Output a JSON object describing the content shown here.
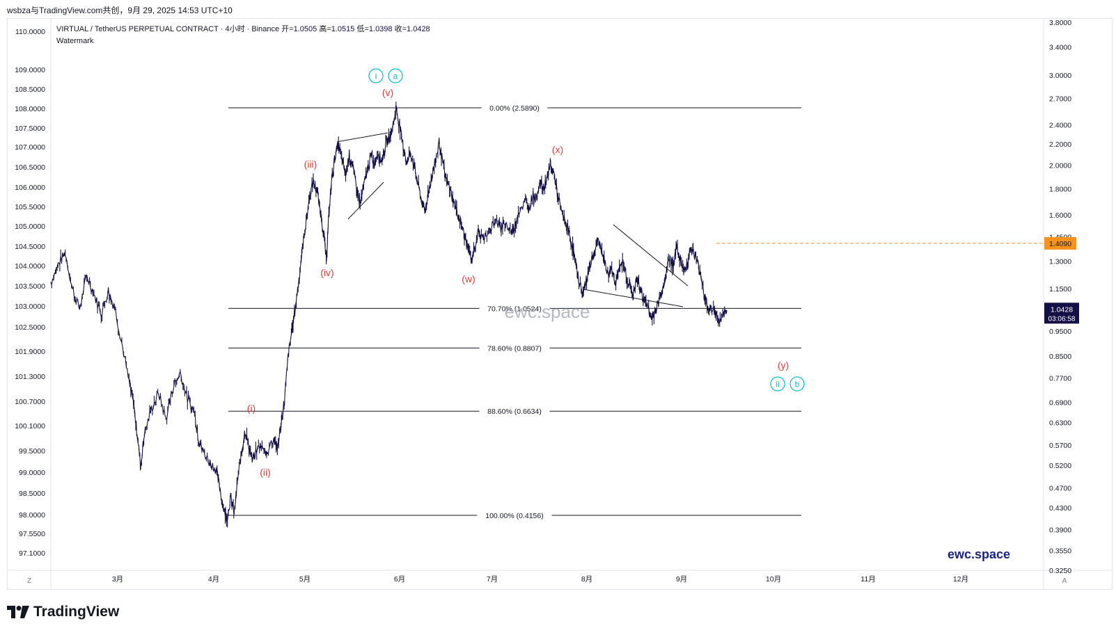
{
  "header": {
    "title": "wsbza与TradingView.com共创，9月 29, 2025 14:53 UTC+10"
  },
  "footer": {
    "brand": "TradingView"
  },
  "colors": {
    "candle": "#131045",
    "wave_red": "#e53935",
    "wave_cyan": "#00bcd4",
    "price_line": "#f7931a",
    "last_price_bg": "#131045",
    "watermark": "#9aa0ad",
    "brand_text": "#1a237e"
  },
  "chart_data": {
    "type": "candlestick",
    "symbol_line": "VIRTUAL / TetherUS PERPETUAL CONTRACT · 4小时 · Binance",
    "ohlc": {
      "open_label": "开",
      "open": "1.0505",
      "high_label": "高",
      "high": "1.0515",
      "low_label": "低",
      "low": "1.0398",
      "close_label": "收",
      "close": "1.0428"
    },
    "indicator_legend": "Watermark",
    "left_axis_ticks": [
      "110.0000",
      "109.0000",
      "108.5000",
      "108.0000",
      "107.5000",
      "107.0000",
      "106.5000",
      "106.0000",
      "105.5000",
      "105.0000",
      "104.5000",
      "104.0000",
      "103.5000",
      "103.0000",
      "102.5000",
      "101.9000",
      "101.3000",
      "100.7000",
      "100.1000",
      "99.5000",
      "99.0000",
      "98.5000",
      "98.0000",
      "97.5500",
      "97.1000"
    ],
    "right_axis_ticks": [
      "3.8000",
      "3.4000",
      "3.0000",
      "2.7000",
      "2.4000",
      "2.2000",
      "2.0000",
      "1.8000",
      "1.6000",
      "1.4500",
      "1.3000",
      "1.1500",
      "0.9500",
      "0.8500",
      "0.7700",
      "0.6900",
      "0.6300",
      "0.5700",
      "0.5200",
      "0.4700",
      "0.4300",
      "0.3900",
      "0.3550",
      "0.3250"
    ],
    "right_axis_scale": "log",
    "x_axis_ticks": [
      "3月",
      "4月",
      "5月",
      "6月",
      "7月",
      "8月",
      "9月",
      "10月",
      "11月",
      "12月"
    ],
    "axis_corner_left": "Z",
    "axis_corner_right": "A",
    "fib_levels": [
      {
        "label": "0.00% (2.5890)",
        "price": 2.589
      },
      {
        "label": "70.70% (1.0524)",
        "price": 1.0524
      },
      {
        "label": "78.60% (0.8807)",
        "price": 0.8807
      },
      {
        "label": "88.60% (0.6634)",
        "price": 0.6634
      },
      {
        "label": "100.00% (0.4156)",
        "price": 0.4156
      }
    ],
    "horizontal_price_line": {
      "label": "1.4090",
      "price": 1.409
    },
    "last_price": {
      "label": "1.0428",
      "countdown": "03:06:58",
      "price": 1.0428
    },
    "wave_labels_red": [
      "(i)",
      "(ii)",
      "(iii)",
      "(iv)",
      "(v)",
      "(w)",
      "(x)",
      "(y)"
    ],
    "wave_labels_cyan": [
      "i",
      "a",
      "ii",
      "b"
    ],
    "watermark_center": "ewc.space",
    "watermark_brand": "ewc.space",
    "price_path": [
      [
        0.0,
        1.18
      ],
      [
        0.01,
        1.28
      ],
      [
        0.02,
        1.35
      ],
      [
        0.03,
        1.15
      ],
      [
        0.04,
        1.05
      ],
      [
        0.05,
        1.22
      ],
      [
        0.06,
        1.12
      ],
      [
        0.07,
        1.03
      ],
      [
        0.08,
        1.14
      ],
      [
        0.09,
        1.04
      ],
      [
        0.1,
        0.88
      ],
      [
        0.11,
        0.74
      ],
      [
        0.115,
        0.69
      ],
      [
        0.12,
        0.6
      ],
      [
        0.125,
        0.52
      ],
      [
        0.13,
        0.6
      ],
      [
        0.14,
        0.67
      ],
      [
        0.15,
        0.72
      ],
      [
        0.16,
        0.64
      ],
      [
        0.17,
        0.74
      ],
      [
        0.18,
        0.79
      ],
      [
        0.19,
        0.7
      ],
      [
        0.2,
        0.66
      ],
      [
        0.205,
        0.59
      ],
      [
        0.21,
        0.56
      ],
      [
        0.22,
        0.53
      ],
      [
        0.23,
        0.51
      ],
      [
        0.235,
        0.47
      ],
      [
        0.24,
        0.43
      ],
      [
        0.245,
        0.41
      ],
      [
        0.25,
        0.45
      ],
      [
        0.255,
        0.42
      ],
      [
        0.26,
        0.49
      ],
      [
        0.265,
        0.55
      ],
      [
        0.27,
        0.61
      ],
      [
        0.275,
        0.57
      ],
      [
        0.28,
        0.53
      ],
      [
        0.29,
        0.57
      ],
      [
        0.3,
        0.55
      ],
      [
        0.31,
        0.59
      ],
      [
        0.315,
        0.56
      ],
      [
        0.32,
        0.62
      ],
      [
        0.325,
        0.7
      ],
      [
        0.33,
        0.85
      ],
      [
        0.335,
        0.95
      ],
      [
        0.34,
        1.06
      ],
      [
        0.345,
        1.2
      ],
      [
        0.35,
        1.38
      ],
      [
        0.355,
        1.56
      ],
      [
        0.36,
        1.74
      ],
      [
        0.365,
        1.86
      ],
      [
        0.37,
        1.78
      ],
      [
        0.375,
        1.62
      ],
      [
        0.38,
        1.46
      ],
      [
        0.383,
        1.3
      ],
      [
        0.386,
        1.55
      ],
      [
        0.39,
        1.85
      ],
      [
        0.395,
        2.08
      ],
      [
        0.4,
        2.2
      ],
      [
        0.405,
        2.05
      ],
      [
        0.41,
        1.92
      ],
      [
        0.415,
        2.1
      ],
      [
        0.42,
        1.98
      ],
      [
        0.425,
        1.82
      ],
      [
        0.43,
        1.68
      ],
      [
        0.435,
        1.82
      ],
      [
        0.44,
        1.96
      ],
      [
        0.445,
        2.08
      ],
      [
        0.45,
        2.02
      ],
      [
        0.455,
        2.12
      ],
      [
        0.46,
        2.04
      ],
      [
        0.465,
        2.18
      ],
      [
        0.47,
        2.26
      ],
      [
        0.475,
        2.36
      ],
      [
        0.48,
        2.589
      ],
      [
        0.485,
        2.38
      ],
      [
        0.49,
        2.18
      ],
      [
        0.495,
        2.02
      ],
      [
        0.5,
        2.12
      ],
      [
        0.505,
        2.0
      ],
      [
        0.51,
        1.86
      ],
      [
        0.515,
        1.72
      ],
      [
        0.52,
        1.62
      ],
      [
        0.525,
        1.78
      ],
      [
        0.53,
        1.9
      ],
      [
        0.535,
        2.05
      ],
      [
        0.54,
        2.22
      ],
      [
        0.545,
        2.02
      ],
      [
        0.55,
        1.86
      ],
      [
        0.555,
        1.8
      ],
      [
        0.56,
        1.7
      ],
      [
        0.565,
        1.62
      ],
      [
        0.57,
        1.55
      ],
      [
        0.575,
        1.46
      ],
      [
        0.58,
        1.38
      ],
      [
        0.585,
        1.3
      ],
      [
        0.59,
        1.4
      ],
      [
        0.595,
        1.48
      ],
      [
        0.6,
        1.44
      ],
      [
        0.61,
        1.5
      ],
      [
        0.62,
        1.56
      ],
      [
        0.625,
        1.5
      ],
      [
        0.63,
        1.56
      ],
      [
        0.64,
        1.48
      ],
      [
        0.645,
        1.52
      ],
      [
        0.65,
        1.62
      ],
      [
        0.66,
        1.7
      ],
      [
        0.665,
        1.64
      ],
      [
        0.67,
        1.76
      ],
      [
        0.675,
        1.72
      ],
      [
        0.68,
        1.86
      ],
      [
        0.685,
        1.8
      ],
      [
        0.69,
        1.9
      ],
      [
        0.695,
        2.0
      ],
      [
        0.7,
        1.92
      ],
      [
        0.705,
        1.74
      ],
      [
        0.71,
        1.62
      ],
      [
        0.715,
        1.56
      ],
      [
        0.72,
        1.48
      ],
      [
        0.725,
        1.4
      ],
      [
        0.73,
        1.28
      ],
      [
        0.735,
        1.18
      ],
      [
        0.74,
        1.12
      ],
      [
        0.745,
        1.2
      ],
      [
        0.75,
        1.28
      ],
      [
        0.755,
        1.34
      ],
      [
        0.76,
        1.42
      ],
      [
        0.765,
        1.38
      ],
      [
        0.77,
        1.3
      ],
      [
        0.775,
        1.22
      ],
      [
        0.78,
        1.26
      ],
      [
        0.785,
        1.18
      ],
      [
        0.79,
        1.24
      ],
      [
        0.795,
        1.3
      ],
      [
        0.8,
        1.22
      ],
      [
        0.805,
        1.16
      ],
      [
        0.81,
        1.12
      ],
      [
        0.815,
        1.2
      ],
      [
        0.82,
        1.14
      ],
      [
        0.825,
        1.1
      ],
      [
        0.83,
        1.06
      ],
      [
        0.835,
        1.0
      ],
      [
        0.84,
        1.04
      ],
      [
        0.845,
        1.08
      ],
      [
        0.85,
        1.14
      ],
      [
        0.855,
        1.22
      ],
      [
        0.86,
        1.32
      ],
      [
        0.865,
        1.28
      ],
      [
        0.87,
        1.38
      ],
      [
        0.875,
        1.32
      ],
      [
        0.88,
        1.24
      ],
      [
        0.885,
        1.3
      ],
      [
        0.89,
        1.38
      ],
      [
        0.895,
        1.34
      ],
      [
        0.9,
        1.28
      ],
      [
        0.905,
        1.2
      ],
      [
        0.91,
        1.1
      ],
      [
        0.915,
        1.04
      ],
      [
        0.92,
        1.06
      ],
      [
        0.925,
        1.02
      ],
      [
        0.93,
        0.99
      ],
      [
        0.935,
        1.03
      ],
      [
        0.94,
        1.0428
      ]
    ]
  }
}
